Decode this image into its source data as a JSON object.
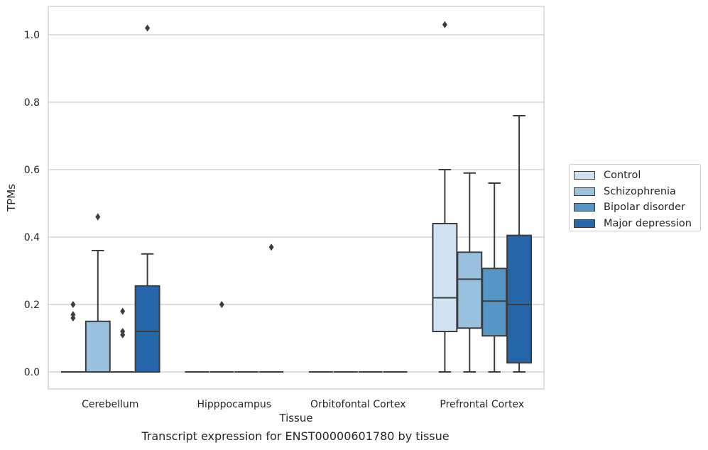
{
  "chart_data": {
    "type": "box",
    "title": "",
    "caption": "Transcript expression for ENST00000601780 by tissue",
    "xlabel": "Tissue",
    "ylabel": "TPMs",
    "ylim": [
      -0.05,
      1.08
    ],
    "yticks": [
      "0.0",
      "0.2",
      "0.4",
      "0.6",
      "0.8",
      "1.0"
    ],
    "ytick_values": [
      0.0,
      0.2,
      0.4,
      0.6,
      0.8,
      1.0
    ],
    "grid": "horizontal",
    "legend_position": "right",
    "categories": [
      "Cerebellum",
      "Hipppocampus",
      "Orbitofontal Cortex",
      "Prefrontal Cortex"
    ],
    "series": [
      {
        "name": "Control",
        "color": "#d0e2f2",
        "boxes": [
          {
            "q1": 0.0,
            "median": 0.0,
            "q3": 0.0,
            "whislo": 0.0,
            "whishi": 0.0,
            "fliers": [
              0.2,
              0.17,
              0.16
            ]
          },
          {
            "q1": 0.0,
            "median": 0.0,
            "q3": 0.0,
            "whislo": 0.0,
            "whishi": 0.0,
            "fliers": []
          },
          {
            "q1": 0.0,
            "median": 0.0,
            "q3": 0.0,
            "whislo": 0.0,
            "whishi": 0.0,
            "fliers": []
          },
          {
            "q1": 0.12,
            "median": 0.22,
            "q3": 0.44,
            "whislo": 0.0,
            "whishi": 0.6,
            "fliers": [
              1.03
            ]
          }
        ]
      },
      {
        "name": "Schizophrenia",
        "color": "#9ac2de",
        "boxes": [
          {
            "q1": 0.0,
            "median": 0.0,
            "q3": 0.15,
            "whislo": 0.0,
            "whishi": 0.36,
            "fliers": [
              0.46
            ]
          },
          {
            "q1": 0.0,
            "median": 0.0,
            "q3": 0.0,
            "whislo": 0.0,
            "whishi": 0.0,
            "fliers": [
              0.2
            ]
          },
          {
            "q1": 0.0,
            "median": 0.0,
            "q3": 0.0,
            "whislo": 0.0,
            "whishi": 0.0,
            "fliers": []
          },
          {
            "q1": 0.13,
            "median": 0.275,
            "q3": 0.355,
            "whislo": 0.0,
            "whishi": 0.59,
            "fliers": []
          }
        ]
      },
      {
        "name": "Bipolar disorder",
        "color": "#5596c6",
        "boxes": [
          {
            "q1": 0.0,
            "median": 0.0,
            "q3": 0.0,
            "whislo": 0.0,
            "whishi": 0.0,
            "fliers": [
              0.18,
              0.12,
              0.11
            ]
          },
          {
            "q1": 0.0,
            "median": 0.0,
            "q3": 0.0,
            "whislo": 0.0,
            "whishi": 0.0,
            "fliers": []
          },
          {
            "q1": 0.0,
            "median": 0.0,
            "q3": 0.0,
            "whislo": 0.0,
            "whishi": 0.0,
            "fliers": []
          },
          {
            "q1": 0.107,
            "median": 0.21,
            "q3": 0.307,
            "whislo": 0.0,
            "whishi": 0.56,
            "fliers": []
          }
        ]
      },
      {
        "name": "Major depression",
        "color": "#2466a7",
        "boxes": [
          {
            "q1": 0.0,
            "median": 0.12,
            "q3": 0.255,
            "whislo": 0.0,
            "whishi": 0.35,
            "fliers": [
              1.02
            ]
          },
          {
            "q1": 0.0,
            "median": 0.0,
            "q3": 0.0,
            "whislo": 0.0,
            "whishi": 0.0,
            "fliers": [
              0.37
            ]
          },
          {
            "q1": 0.0,
            "median": 0.0,
            "q3": 0.0,
            "whislo": 0.0,
            "whishi": 0.0,
            "fliers": []
          },
          {
            "q1": 0.027,
            "median": 0.2,
            "q3": 0.405,
            "whislo": 0.0,
            "whishi": 0.76,
            "fliers": []
          }
        ]
      }
    ]
  }
}
